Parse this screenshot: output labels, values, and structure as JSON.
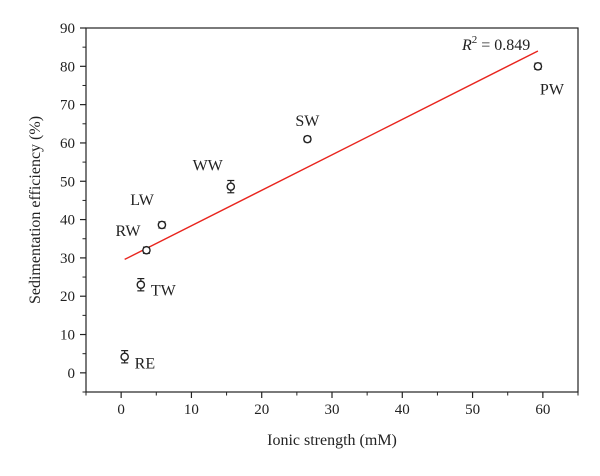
{
  "chart_data": {
    "type": "scatter",
    "xlabel": "Ionic strength (mM)",
    "ylabel": "Sedimentation efficiency (%)",
    "xlim": [
      -5,
      65
    ],
    "ylim": [
      -5,
      90
    ],
    "xticks": [
      0,
      10,
      20,
      30,
      40,
      50,
      60
    ],
    "yticks": [
      0,
      10,
      20,
      30,
      40,
      50,
      60,
      70,
      80,
      90
    ],
    "grid": false,
    "points": [
      {
        "label": "RE",
        "x": 0.5,
        "y": 4.2,
        "err": 1.6
      },
      {
        "label": "TW",
        "x": 2.8,
        "y": 23.0,
        "err": 1.6
      },
      {
        "label": "RW",
        "x": 3.6,
        "y": 32.0,
        "err": 0.8
      },
      {
        "label": "LW",
        "x": 5.8,
        "y": 38.6,
        "err": 0.8
      },
      {
        "label": "WW",
        "x": 15.6,
        "y": 48.6,
        "err": 1.6
      },
      {
        "label": "SW",
        "x": 26.5,
        "y": 61.0,
        "err": 0.7
      },
      {
        "label": "PW",
        "x": 59.3,
        "y": 80.0,
        "err": 0.8
      }
    ],
    "fit_line": {
      "x": [
        0.5,
        59.3
      ],
      "y": [
        29.6,
        84.0
      ],
      "color": "#e8251e"
    },
    "annotation": {
      "r2_prefix": "R",
      "r2_exponent": "2",
      "r2_value": " = 0.849"
    }
  }
}
